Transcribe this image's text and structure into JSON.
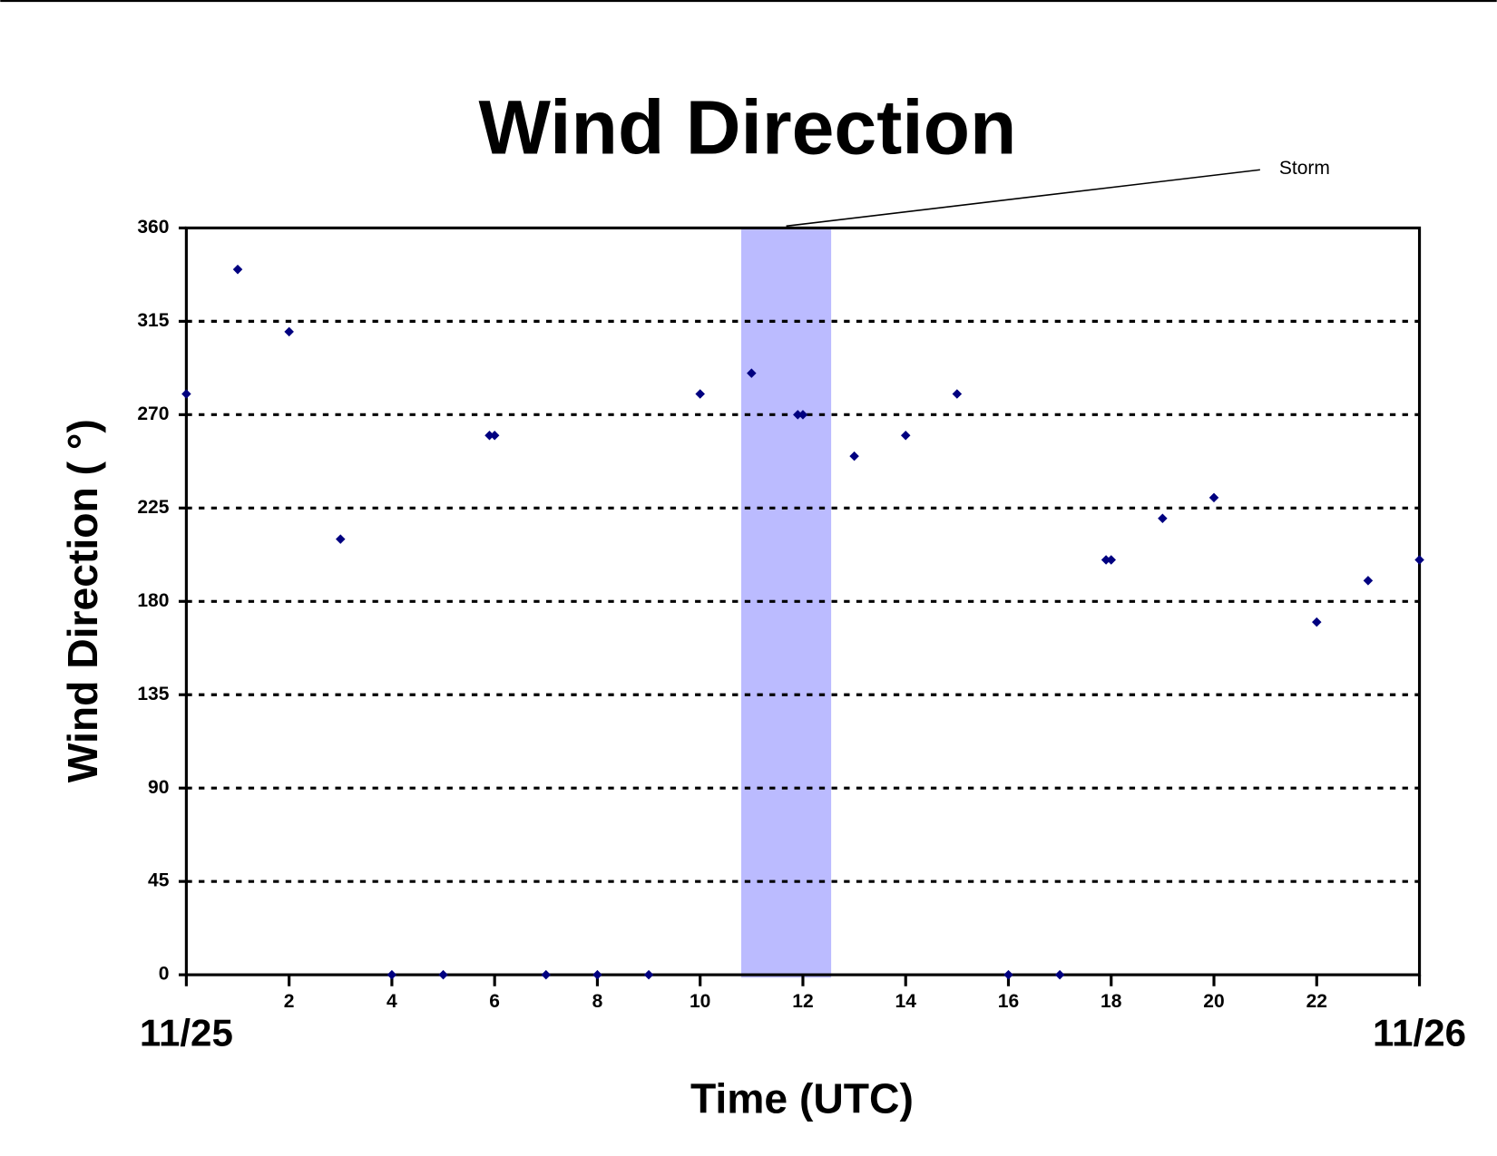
{
  "chart_data": {
    "type": "scatter",
    "title": "Wind Direction",
    "x_label": "Time (UTC)",
    "y_label": "Wind Direction ( °)",
    "x": [
      0,
      1,
      2,
      3,
      4,
      5,
      5.9,
      6,
      7,
      8,
      9,
      10,
      11,
      11.9,
      12,
      13,
      14,
      15,
      16,
      17,
      17.9,
      18,
      19,
      20,
      22,
      23,
      24
    ],
    "series": [
      {
        "name": "Wind Direction",
        "color": "#000080",
        "values": [
          280,
          340,
          310,
          210,
          0,
          0,
          260,
          260,
          0,
          0,
          0,
          280,
          290,
          270,
          270,
          250,
          260,
          280,
          0,
          0,
          200,
          200,
          220,
          230,
          170,
          190,
          200
        ]
      }
    ],
    "xlim": [
      0,
      24
    ],
    "xticks": [
      2,
      4,
      6,
      8,
      10,
      12,
      14,
      16,
      18,
      20,
      22
    ],
    "date_labels": [
      {
        "value": 0,
        "label": "11/25"
      },
      {
        "value": 24,
        "label": "11/26"
      }
    ],
    "ylim": [
      0,
      360
    ],
    "yticks": [
      0,
      45,
      90,
      135,
      180,
      225,
      270,
      315,
      360
    ],
    "grid": true,
    "shaded_region": {
      "xmin": 10.8,
      "xmax": 12.55,
      "color": "#bbbbff",
      "label": "Storm"
    }
  }
}
